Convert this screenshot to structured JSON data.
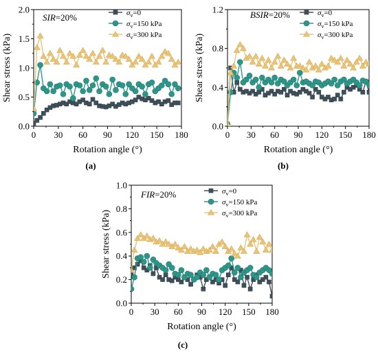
{
  "chart_data": [
    {
      "type": "line",
      "panel_label": "(a)",
      "annotation": {
        "italic": "SIR",
        "rest": "=20%"
      },
      "xlabel": "Rotation angle (°)",
      "ylabel": "Shear stress (kPa)",
      "xlim": [
        0,
        180
      ],
      "ylim": [
        0,
        2.0
      ],
      "xticks": [
        0,
        30,
        60,
        90,
        120,
        150,
        180
      ],
      "yticks": [
        0.0,
        0.5,
        1.0,
        1.5,
        2.0
      ],
      "xtick_labels": [
        "0",
        "30",
        "60",
        "90",
        "120",
        "150",
        "180"
      ],
      "ytick_labels": [
        "0.0",
        "0.5",
        "1.0",
        "1.5",
        "2.0"
      ],
      "legend_position": "top-right",
      "series": [
        {
          "name": "σv=0",
          "legend": {
            "sym": "σ",
            "sub": "v",
            "rest": "=0"
          },
          "color": "#3f4f5b",
          "marker": "square",
          "x": [
            0,
            4,
            8,
            12,
            16,
            20,
            24,
            28,
            32,
            36,
            40,
            44,
            48,
            52,
            56,
            60,
            64,
            68,
            72,
            76,
            80,
            84,
            88,
            92,
            96,
            100,
            104,
            108,
            112,
            116,
            120,
            124,
            128,
            132,
            136,
            140,
            144,
            148,
            152,
            156,
            160,
            164,
            168,
            172,
            176
          ],
          "y": [
            0.05,
            0.1,
            0.15,
            0.22,
            0.28,
            0.32,
            0.35,
            0.36,
            0.38,
            0.4,
            0.38,
            0.42,
            0.4,
            0.38,
            0.42,
            0.45,
            0.4,
            0.38,
            0.46,
            0.4,
            0.35,
            0.34,
            0.33,
            0.35,
            0.38,
            0.34,
            0.37,
            0.4,
            0.38,
            0.4,
            0.42,
            0.45,
            0.5,
            0.47,
            0.45,
            0.48,
            0.44,
            0.4,
            0.42,
            0.38,
            0.42,
            0.44,
            0.37,
            0.4,
            0.4
          ]
        },
        {
          "name": "σv=150 kPa",
          "legend": {
            "sym": "σ",
            "sub": "v",
            "rest": "=150 kPa"
          },
          "color": "#2e9688",
          "marker": "circle",
          "x": [
            0,
            4,
            8,
            12,
            16,
            20,
            24,
            28,
            32,
            36,
            40,
            44,
            48,
            52,
            56,
            60,
            64,
            68,
            72,
            76,
            80,
            84,
            88,
            92,
            96,
            100,
            104,
            108,
            112,
            116,
            120,
            124,
            128,
            132,
            136,
            140,
            144,
            148,
            152,
            156,
            160,
            164,
            168,
            172,
            176
          ],
          "y": [
            0.22,
            0.75,
            1.05,
            0.65,
            0.6,
            0.72,
            0.6,
            0.68,
            0.7,
            0.55,
            0.72,
            0.68,
            0.48,
            0.72,
            0.7,
            0.6,
            0.78,
            0.62,
            0.7,
            0.82,
            0.6,
            0.72,
            0.68,
            0.55,
            0.8,
            0.62,
            0.72,
            0.7,
            0.55,
            0.72,
            0.65,
            0.6,
            0.72,
            0.68,
            0.55,
            0.72,
            0.75,
            0.6,
            0.65,
            0.7,
            0.78,
            0.72,
            0.55,
            0.72,
            0.65
          ]
        },
        {
          "name": "σv=300 kPa",
          "legend": {
            "sym": "σ",
            "sub": "v",
            "rest": "=300 kPa"
          },
          "color": "#e8c47a",
          "marker": "triangle",
          "x": [
            0,
            4,
            8,
            12,
            16,
            20,
            24,
            28,
            32,
            36,
            40,
            44,
            48,
            52,
            56,
            60,
            64,
            68,
            72,
            76,
            80,
            84,
            88,
            92,
            96,
            100,
            104,
            108,
            112,
            116,
            120,
            124,
            128,
            132,
            136,
            140,
            144,
            148,
            152,
            156,
            160,
            164,
            168,
            172,
            176
          ],
          "y": [
            0.3,
            1.35,
            1.55,
            1.2,
            1.1,
            1.25,
            1.15,
            1.1,
            1.3,
            1.2,
            1.1,
            1.25,
            1.2,
            1.05,
            1.22,
            1.3,
            1.2,
            1.15,
            1.25,
            1.1,
            1.2,
            1.3,
            1.1,
            1.22,
            1.2,
            1.15,
            1.1,
            1.22,
            1.2,
            1.15,
            1.05,
            1.1,
            1.2,
            1.15,
            1.05,
            1.1,
            1.2,
            1.05,
            1.1,
            1.2,
            1.28,
            1.25,
            1.15,
            1.05,
            1.1
          ]
        }
      ]
    },
    {
      "type": "line",
      "panel_label": "(b)",
      "annotation": {
        "italic": "BSIR",
        "rest": "=20%"
      },
      "xlabel": "Rotation angle (°)",
      "ylabel": "Shear stress (kPa)",
      "xlim": [
        0,
        180
      ],
      "ylim": [
        0,
        1.2
      ],
      "xticks": [
        0,
        30,
        60,
        90,
        120,
        150,
        180
      ],
      "yticks": [
        0.0,
        0.4,
        0.8,
        1.2
      ],
      "xtick_labels": [
        "0",
        "30",
        "60",
        "90",
        "120",
        "150",
        "180"
      ],
      "ytick_labels": [
        "0.0",
        "0.4",
        "0.8",
        "1.2"
      ],
      "legend_position": "top-right",
      "series": [
        {
          "name": "σv=0",
          "legend": {
            "sym": "σ",
            "sub": "v",
            "rest": "=0"
          },
          "color": "#3f4f5b",
          "marker": "square",
          "x": [
            0,
            4,
            8,
            12,
            16,
            20,
            24,
            28,
            32,
            36,
            40,
            44,
            48,
            52,
            56,
            60,
            64,
            68,
            72,
            76,
            80,
            84,
            88,
            92,
            96,
            100,
            104,
            108,
            112,
            116,
            120,
            124,
            128,
            132,
            136,
            140,
            144,
            148,
            152,
            156,
            160,
            164,
            168,
            172,
            176,
            180
          ],
          "y": [
            0.02,
            0.6,
            0.35,
            0.45,
            0.38,
            0.35,
            0.36,
            0.34,
            0.36,
            0.33,
            0.35,
            0.38,
            0.32,
            0.34,
            0.36,
            0.33,
            0.36,
            0.35,
            0.38,
            0.32,
            0.36,
            0.34,
            0.33,
            0.35,
            0.38,
            0.36,
            0.34,
            0.3,
            0.38,
            0.35,
            0.3,
            0.28,
            0.3,
            0.27,
            0.28,
            0.32,
            0.28,
            0.35,
            0.4,
            0.38,
            0.4,
            0.42,
            0.38,
            0.35,
            0.46,
            0.35
          ]
        },
        {
          "name": "σv=150 kPa",
          "legend": {
            "sym": "σ",
            "sub": "v",
            "rest": "=150 kPa"
          },
          "color": "#2e9688",
          "marker": "circle",
          "x": [
            0,
            4,
            8,
            12,
            16,
            20,
            24,
            28,
            32,
            36,
            40,
            44,
            48,
            52,
            56,
            60,
            64,
            68,
            72,
            76,
            80,
            84,
            88,
            92,
            96,
            100,
            104,
            108,
            112,
            116,
            120,
            124,
            128,
            132,
            136,
            140,
            144,
            148,
            152,
            156,
            160,
            164,
            168,
            172,
            176,
            180
          ],
          "y": [
            0.02,
            0.35,
            0.55,
            0.5,
            0.66,
            0.45,
            0.48,
            0.52,
            0.45,
            0.48,
            0.4,
            0.5,
            0.45,
            0.48,
            0.45,
            0.5,
            0.44,
            0.48,
            0.46,
            0.42,
            0.45,
            0.48,
            0.42,
            0.55,
            0.45,
            0.46,
            0.44,
            0.42,
            0.46,
            0.45,
            0.42,
            0.44,
            0.46,
            0.44,
            0.48,
            0.42,
            0.46,
            0.48,
            0.44,
            0.46,
            0.48,
            0.45,
            0.42,
            0.47,
            0.46,
            0.43
          ]
        },
        {
          "name": "σv=300 kPa",
          "legend": {
            "sym": "σ",
            "sub": "v",
            "rest": "=300 kPa"
          },
          "color": "#e8c47a",
          "marker": "triangle",
          "x": [
            0,
            4,
            8,
            12,
            16,
            20,
            24,
            28,
            32,
            36,
            40,
            44,
            48,
            52,
            56,
            60,
            64,
            68,
            72,
            76,
            80,
            84,
            88,
            92,
            96,
            100,
            104,
            108,
            112,
            116,
            120,
            124,
            128,
            132,
            136,
            140,
            144,
            148,
            152,
            156,
            160,
            164,
            168,
            172,
            176,
            180
          ],
          "y": [
            0.02,
            0.55,
            0.62,
            0.78,
            0.84,
            0.8,
            0.7,
            0.72,
            0.66,
            0.72,
            0.64,
            0.7,
            0.62,
            0.68,
            0.6,
            0.66,
            0.72,
            0.62,
            0.68,
            0.64,
            0.6,
            0.7,
            0.62,
            0.62,
            0.6,
            0.58,
            0.66,
            0.6,
            0.62,
            0.58,
            0.64,
            0.6,
            0.62,
            0.7,
            0.68,
            0.66,
            0.7,
            0.62,
            0.68,
            0.64,
            0.6,
            0.66,
            0.7,
            0.62,
            0.66,
            0.64
          ]
        }
      ]
    },
    {
      "type": "line",
      "panel_label": "(c)",
      "annotation": {
        "italic": "FIR",
        "rest": "=20%"
      },
      "xlabel": "Rotation angle (°)",
      "ylabel": "Shear stress (kPa)",
      "xlim": [
        0,
        180
      ],
      "ylim": [
        0,
        1.0
      ],
      "xticks": [
        0,
        30,
        60,
        90,
        120,
        150,
        180
      ],
      "yticks": [
        0.0,
        0.2,
        0.4,
        0.6,
        0.8,
        1.0
      ],
      "xtick_labels": [
        "0",
        "30",
        "60",
        "90",
        "120",
        "150",
        "180"
      ],
      "ytick_labels": [
        "0.0",
        "0.2",
        "0.4",
        "0.6",
        "0.8",
        "1.0"
      ],
      "legend_position": "top-right",
      "series": [
        {
          "name": "σv=0",
          "legend": {
            "sym": "σ",
            "sub": "v",
            "rest": "=0"
          },
          "color": "#3f4f5b",
          "marker": "square",
          "x": [
            0,
            4,
            8,
            12,
            16,
            20,
            24,
            28,
            32,
            36,
            40,
            44,
            48,
            52,
            56,
            60,
            64,
            68,
            72,
            76,
            80,
            84,
            88,
            92,
            96,
            100,
            104,
            108,
            112,
            116,
            120,
            124,
            128,
            132,
            136,
            140,
            144,
            148,
            152,
            156,
            160,
            164,
            168,
            172,
            176,
            180
          ],
          "y": [
            0.25,
            0.3,
            0.33,
            0.36,
            0.3,
            0.28,
            0.32,
            0.25,
            0.3,
            0.22,
            0.2,
            0.24,
            0.2,
            0.19,
            0.22,
            0.2,
            0.18,
            0.22,
            0.2,
            0.16,
            0.2,
            0.24,
            0.22,
            0.12,
            0.2,
            0.22,
            0.18,
            0.2,
            0.17,
            0.2,
            0.15,
            0.24,
            0.3,
            0.2,
            0.18,
            0.28,
            0.15,
            0.22,
            0.12,
            0.2,
            0.24,
            0.18,
            0.2,
            0.22,
            0.18,
            0.06
          ]
        },
        {
          "name": "σv=150 kPa",
          "legend": {
            "sym": "σ",
            "sub": "v",
            "rest": "=150 kPa"
          },
          "color": "#2e9688",
          "marker": "circle",
          "x": [
            0,
            4,
            8,
            12,
            16,
            20,
            24,
            28,
            32,
            36,
            40,
            44,
            48,
            52,
            56,
            60,
            64,
            68,
            72,
            76,
            80,
            84,
            88,
            92,
            96,
            100,
            104,
            108,
            112,
            116,
            120,
            124,
            128,
            132,
            136,
            140,
            144,
            148,
            152,
            156,
            160,
            164,
            168,
            172,
            176,
            180
          ],
          "y": [
            0.12,
            0.22,
            0.38,
            0.39,
            0.35,
            0.4,
            0.3,
            0.37,
            0.34,
            0.32,
            0.3,
            0.28,
            0.33,
            0.3,
            0.25,
            0.24,
            0.28,
            0.22,
            0.25,
            0.24,
            0.2,
            0.22,
            0.26,
            0.24,
            0.28,
            0.22,
            0.25,
            0.24,
            0.2,
            0.28,
            0.3,
            0.32,
            0.38,
            0.26,
            0.3,
            0.22,
            0.26,
            0.28,
            0.3,
            0.24,
            0.22,
            0.26,
            0.28,
            0.3,
            0.28,
            0.25
          ]
        },
        {
          "name": "σv=300 kPa",
          "legend": {
            "sym": "σ",
            "sub": "v",
            "rest": "=300 kPa"
          },
          "color": "#e8c47a",
          "marker": "triangle",
          "x": [
            0,
            4,
            8,
            12,
            16,
            20,
            24,
            28,
            32,
            36,
            40,
            44,
            48,
            52,
            56,
            60,
            64,
            68,
            72,
            76,
            80,
            84,
            88,
            92,
            96,
            100,
            104,
            108,
            112,
            116,
            120,
            124,
            128,
            132,
            136,
            140,
            144,
            148,
            152,
            156,
            160,
            164,
            168,
            172,
            176,
            180
          ],
          "y": [
            0.28,
            0.45,
            0.55,
            0.58,
            0.55,
            0.57,
            0.54,
            0.55,
            0.52,
            0.53,
            0.5,
            0.52,
            0.5,
            0.48,
            0.5,
            0.47,
            0.45,
            0.48,
            0.44,
            0.46,
            0.44,
            0.45,
            0.43,
            0.46,
            0.44,
            0.45,
            0.48,
            0.44,
            0.5,
            0.52,
            0.48,
            0.44,
            0.46,
            0.42,
            0.4,
            0.47,
            0.44,
            0.58,
            0.5,
            0.54,
            0.44,
            0.56,
            0.52,
            0.45,
            0.5,
            0.45
          ]
        }
      ]
    }
  ]
}
